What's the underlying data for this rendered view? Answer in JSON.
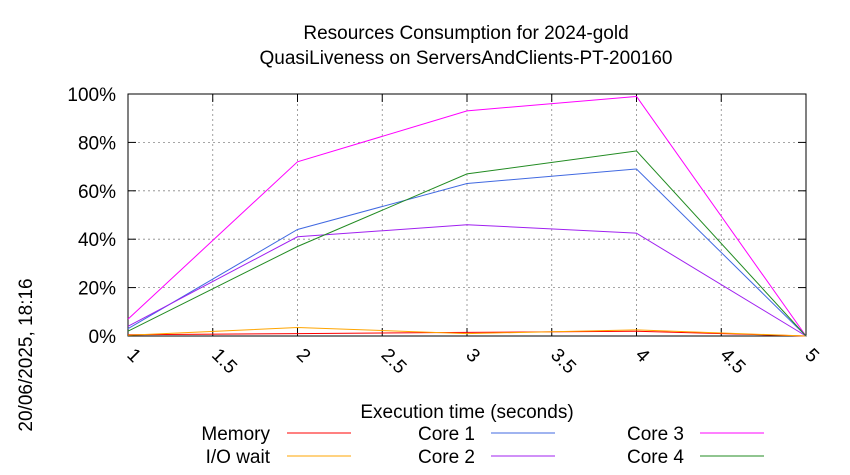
{
  "chart_data": {
    "type": "line",
    "title_line1": "Resources Consumption for 2024-gold",
    "title_line2": "QuasiLiveness on ServersAndClients-PT-200160",
    "xlabel": "Execution time (seconds)",
    "ylabel": "",
    "side_label": "20/06/2025, 18:16",
    "xlim": [
      1,
      5
    ],
    "ylim": [
      0,
      100
    ],
    "x_ticks": [
      "1",
      "1.5",
      "2",
      "2.5",
      "3",
      "3.5",
      "4",
      "4.5",
      "5"
    ],
    "y_ticks": [
      "0%",
      "20%",
      "40%",
      "60%",
      "80%",
      "100%"
    ],
    "grid": true,
    "legend_position": "bottom",
    "x": [
      1,
      2,
      3,
      4,
      5
    ],
    "series": [
      {
        "name": "Memory",
        "color": "#ff0000",
        "values": [
          0.5,
          1,
          1.5,
          2,
          0
        ]
      },
      {
        "name": "I/O wait",
        "color": "#ffa500",
        "values": [
          0.3,
          3.5,
          1,
          2.5,
          0
        ]
      },
      {
        "name": "Core 1",
        "color": "#4169e1",
        "values": [
          3,
          44,
          63,
          69,
          0
        ]
      },
      {
        "name": "Core 2",
        "color": "#a020f0",
        "values": [
          4,
          41,
          46,
          42.5,
          0
        ]
      },
      {
        "name": "Core 3",
        "color": "#ff00ff",
        "values": [
          7,
          72,
          93,
          99,
          0
        ]
      },
      {
        "name": "Core 4",
        "color": "#228b22",
        "values": [
          2,
          37,
          67,
          76.5,
          0
        ]
      }
    ]
  }
}
